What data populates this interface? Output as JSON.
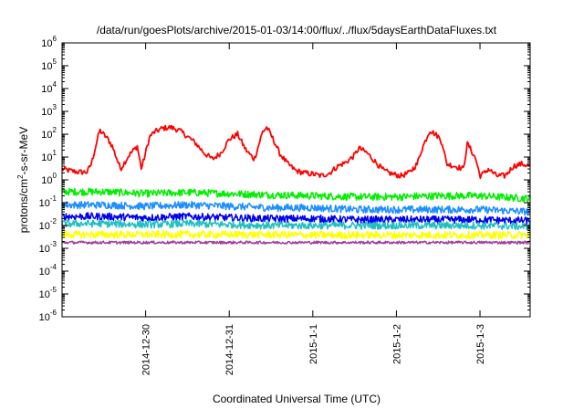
{
  "chart_data": {
    "type": "line",
    "title": "/data/run/goesPlots/archive/2015-01-03/14:00/flux/../flux/5daysEarthDataFluxes.txt",
    "xlabel": "Coordinated Universal Time (UTC)",
    "ylabel_parts": [
      "protons/cm",
      "2",
      "-s-sr-MeV"
    ],
    "y_scale": "log",
    "ylim": [
      1e-06,
      1000000.0
    ],
    "y_ticks": [
      {
        "value": -6,
        "base": "10",
        "exp": "-6"
      },
      {
        "value": -5,
        "base": "10",
        "exp": "-5"
      },
      {
        "value": -4,
        "base": "10",
        "exp": "-4"
      },
      {
        "value": -3,
        "base": "10",
        "exp": "-3"
      },
      {
        "value": -2,
        "base": "10",
        "exp": "-2"
      },
      {
        "value": -1,
        "base": "10",
        "exp": "-1"
      },
      {
        "value": 0,
        "base": "10",
        "exp": "0"
      },
      {
        "value": 1,
        "base": "10",
        "exp": "1"
      },
      {
        "value": 2,
        "base": "10",
        "exp": "2"
      },
      {
        "value": 3,
        "base": "10",
        "exp": "3"
      },
      {
        "value": 4,
        "base": "10",
        "exp": "4"
      },
      {
        "value": 5,
        "base": "10",
        "exp": "5"
      },
      {
        "value": 6,
        "base": "10",
        "exp": "6"
      }
    ],
    "x_ticks": [
      {
        "day": 1,
        "label": "2014-12-30"
      },
      {
        "day": 2,
        "label": "2014-12-31"
      },
      {
        "day": 3,
        "label": "2015-1-1"
      },
      {
        "day": 4,
        "label": "2015-1-2"
      },
      {
        "day": 5,
        "label": "2015-1-3"
      }
    ],
    "xlim_days": [
      0,
      5.6
    ],
    "grid": false,
    "legend": "none",
    "series": [
      {
        "color": "#ff0000",
        "x": [
          0,
          0.1,
          0.2,
          0.3,
          0.35,
          0.45,
          0.55,
          0.6,
          0.7,
          0.8,
          0.9,
          0.95,
          1.05,
          1.1,
          1.2,
          1.3,
          1.4,
          1.5,
          1.6,
          1.7,
          1.8,
          1.9,
          2.0,
          2.1,
          2.2,
          2.3,
          2.4,
          2.45,
          2.55,
          2.6,
          2.7,
          2.8,
          2.9,
          3.0,
          3.1,
          3.2,
          3.3,
          3.4,
          3.5,
          3.55,
          3.65,
          3.75,
          3.85,
          3.95,
          4.05,
          4.15,
          4.25,
          4.3,
          4.4,
          4.5,
          4.55,
          4.6,
          4.7,
          4.8,
          4.85,
          4.95,
          5.0,
          5.05,
          5.1,
          5.2,
          5.3,
          5.4,
          5.5,
          5.6
        ],
        "y": [
          3,
          2.5,
          2.2,
          2.2,
          5,
          150,
          60,
          30,
          3,
          12,
          30,
          3,
          80,
          120,
          180,
          200,
          150,
          80,
          40,
          15,
          8,
          15,
          60,
          100,
          20,
          8,
          130,
          200,
          40,
          15,
          5,
          2.5,
          2,
          1.8,
          1.5,
          2,
          4,
          6,
          12,
          25,
          15,
          6,
          2.5,
          1.8,
          1.5,
          2,
          5,
          20,
          150,
          80,
          40,
          5,
          4,
          3,
          40,
          8,
          1.5,
          2,
          3,
          1.5,
          1.5,
          4,
          5,
          4
        ]
      },
      {
        "color": "#00ee00",
        "x": [
          0,
          0.5,
          1.0,
          1.5,
          2.0,
          2.5,
          3.0,
          3.5,
          4.0,
          4.5,
          5.0,
          5.6
        ],
        "y": [
          0.3,
          0.3,
          0.25,
          0.28,
          0.25,
          0.22,
          0.2,
          0.18,
          0.18,
          0.2,
          0.2,
          0.15
        ]
      },
      {
        "color": "#1e8fff",
        "x": [
          0,
          0.5,
          1.0,
          1.5,
          2.0,
          2.5,
          3.0,
          3.5,
          4.0,
          4.5,
          5.0,
          5.6
        ],
        "y": [
          0.08,
          0.08,
          0.07,
          0.08,
          0.07,
          0.06,
          0.06,
          0.05,
          0.05,
          0.05,
          0.05,
          0.04
        ]
      },
      {
        "color": "#0000ee",
        "x": [
          0,
          0.5,
          1.0,
          1.5,
          2.0,
          2.5,
          3.0,
          3.5,
          4.0,
          4.5,
          5.0,
          5.6
        ],
        "y": [
          0.025,
          0.025,
          0.022,
          0.025,
          0.022,
          0.02,
          0.02,
          0.018,
          0.018,
          0.018,
          0.018,
          0.016
        ]
      },
      {
        "color": "#20c0c0",
        "x": [
          0,
          0.5,
          1.0,
          1.5,
          2.0,
          2.5,
          3.0,
          3.5,
          4.0,
          4.5,
          5.0,
          5.6
        ],
        "y": [
          0.012,
          0.012,
          0.011,
          0.012,
          0.011,
          0.01,
          0.01,
          0.01,
          0.01,
          0.01,
          0.01,
          0.009
        ]
      },
      {
        "color": "#ffff00",
        "x": [
          0,
          0.5,
          1.0,
          1.5,
          2.0,
          2.5,
          3.0,
          3.5,
          4.0,
          4.5,
          5.0,
          5.6
        ],
        "y": [
          0.004,
          0.004,
          0.004,
          0.004,
          0.004,
          0.004,
          0.0038,
          0.0038,
          0.0038,
          0.0038,
          0.0038,
          0.0038
        ]
      },
      {
        "color": "#a040a0",
        "x": [
          0,
          0.5,
          1.0,
          1.5,
          2.0,
          2.5,
          3.0,
          3.5,
          4.0,
          4.5,
          5.0,
          5.6
        ],
        "y": [
          0.0018,
          0.0018,
          0.0018,
          0.0018,
          0.0018,
          0.0018,
          0.0018,
          0.0018,
          0.0018,
          0.0018,
          0.0018,
          0.0018
        ]
      }
    ]
  }
}
